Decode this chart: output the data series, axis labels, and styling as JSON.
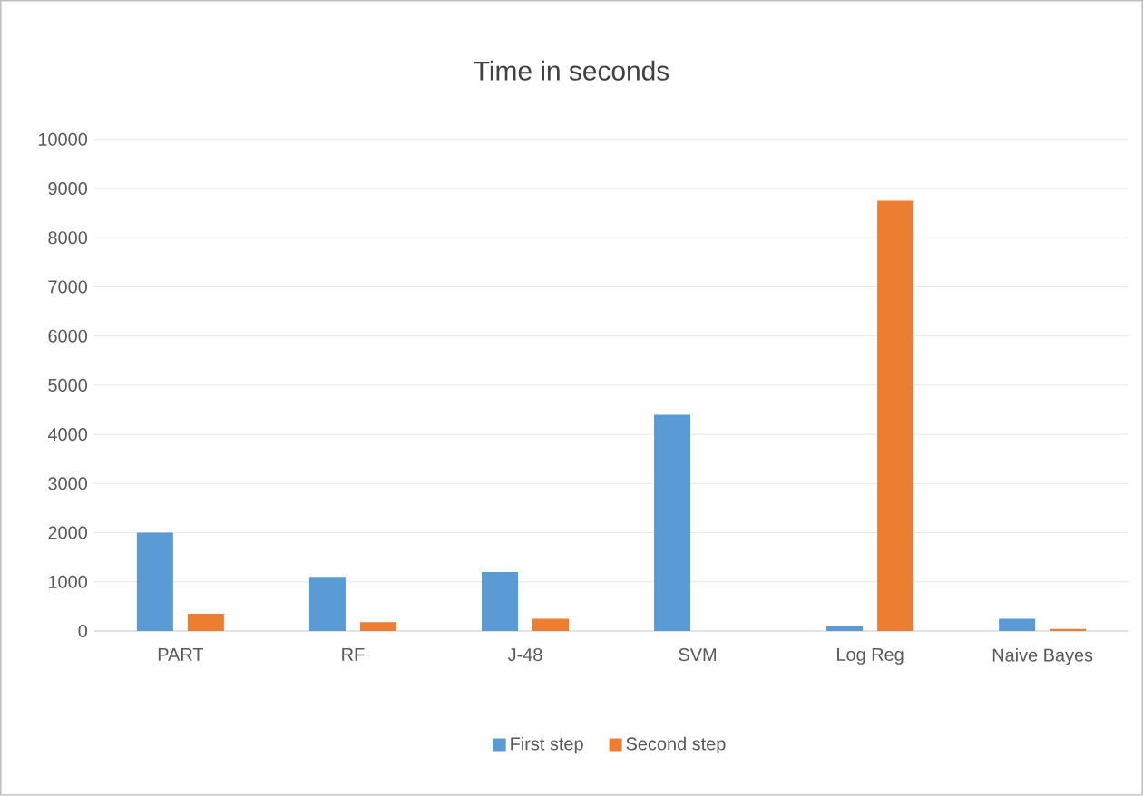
{
  "chart_data": {
    "type": "bar",
    "title": "Time in seconds",
    "categories": [
      "PART",
      "RF",
      "J-48",
      "SVM",
      "Log Reg",
      "Naive Bayes"
    ],
    "series": [
      {
        "name": "First step",
        "color": "#5b9bd5",
        "values": [
          2000,
          1100,
          1200,
          4400,
          100,
          250
        ]
      },
      {
        "name": "Second step",
        "color": "#ed7d31",
        "values": [
          350,
          180,
          250,
          0,
          8750,
          40
        ]
      }
    ],
    "ylim": [
      0,
      10000
    ],
    "yticks": [
      0,
      1000,
      2000,
      3000,
      4000,
      5000,
      6000,
      7000,
      8000,
      9000,
      10000
    ],
    "grid": "y",
    "legend": "bottom"
  }
}
